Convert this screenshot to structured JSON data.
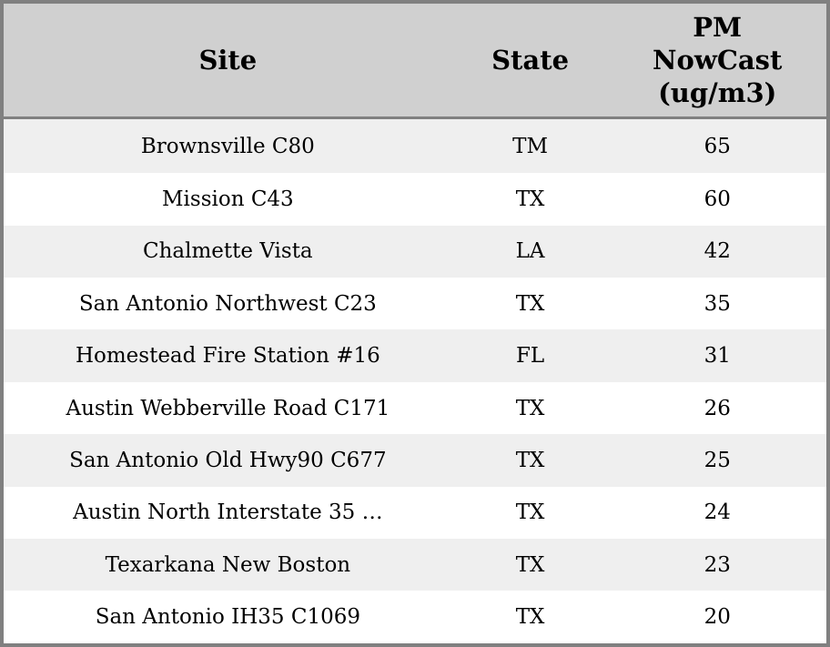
{
  "colors": {
    "outer_border": "#808080",
    "header_background": "#d0d0d0",
    "stripe_row_background": "#efefef",
    "plain_row_background": "#ffffff",
    "text": "#000000"
  },
  "table": {
    "headers": [
      {
        "label": "Site"
      },
      {
        "label": "State"
      },
      {
        "label": "PM NowCast (ug/m3)",
        "lines": [
          "PM",
          "NowCast",
          "(ug/m3)"
        ]
      }
    ]
  },
  "chart_data": {
    "type": "table",
    "columns": [
      "Site",
      "State",
      "PM NowCast (ug/m3)"
    ],
    "rows": [
      [
        "Brownsville C80",
        "TM",
        65
      ],
      [
        "Mission C43",
        "TX",
        60
      ],
      [
        "Chalmette Vista",
        "LA",
        42
      ],
      [
        "San Antonio Northwest C23",
        "TX",
        35
      ],
      [
        "Homestead Fire Station #16",
        "FL",
        31
      ],
      [
        "Austin Webberville Road C171",
        "TX",
        26
      ],
      [
        "San Antonio Old Hwy90 C677",
        "TX",
        25
      ],
      [
        "Austin North Interstate 35 …",
        "TX",
        24
      ],
      [
        "Texarkana New Boston",
        "TX",
        23
      ],
      [
        "San Antonio IH35 C1069",
        "TX",
        20
      ]
    ],
    "layout": {
      "header_position": "top",
      "row_striping": "odd-rows-gray",
      "column_alignment": [
        "center",
        "center",
        "center"
      ]
    }
  }
}
